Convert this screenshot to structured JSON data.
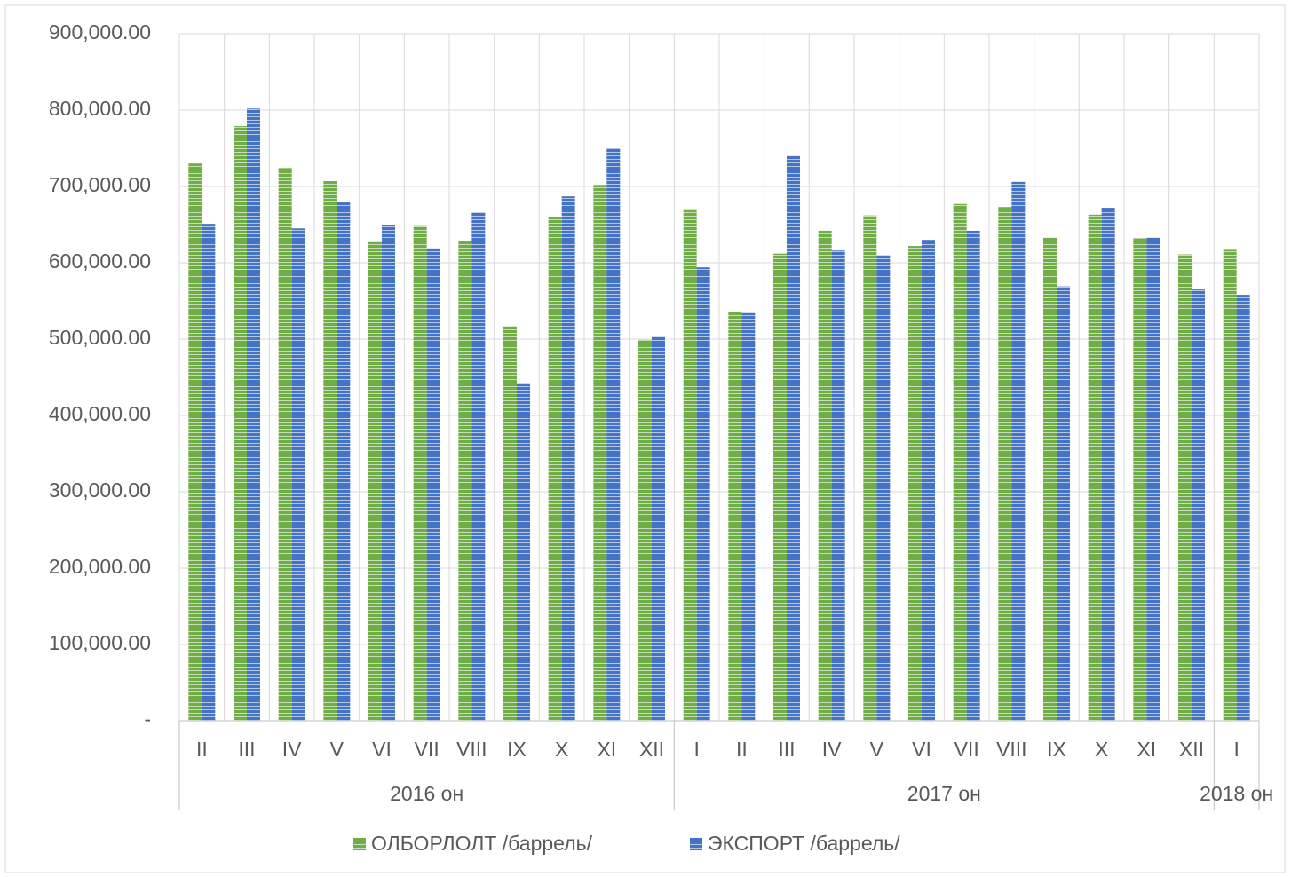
{
  "chart_data": {
    "type": "bar",
    "groups": [
      {
        "label": "2016 он",
        "categories": [
          "II",
          "III",
          "IV",
          "V",
          "VI",
          "VII",
          "VIII",
          "IX",
          "X",
          "XI",
          "XII"
        ]
      },
      {
        "label": "2017 он",
        "categories": [
          "I",
          "II",
          "III",
          "IV",
          "V",
          "VI",
          "VII",
          "VIII",
          "IX",
          "X",
          "XI",
          "XII"
        ]
      },
      {
        "label": "2018 он",
        "categories": [
          "I"
        ]
      }
    ],
    "series": [
      {
        "name": "ОЛБОРЛОЛТ /баррель/",
        "color": "#70ad47",
        "values": [
          730000,
          779000,
          724000,
          707000,
          627000,
          648000,
          629000,
          517000,
          660000,
          702000,
          499000,
          669000,
          536000,
          612000,
          642000,
          662000,
          622000,
          677000,
          673000,
          633000,
          663000,
          632000,
          611000,
          617000
        ]
      },
      {
        "name": "ЭКСПОРТ /баррель/",
        "color": "#4472c4",
        "values": [
          651000,
          802000,
          645000,
          679000,
          649000,
          619000,
          666000,
          441000,
          687000,
          750000,
          503000,
          594000,
          534000,
          740000,
          616000,
          610000,
          630000,
          642000,
          706000,
          569000,
          672000,
          633000,
          565000,
          558000
        ]
      }
    ],
    "ylim": [
      0,
      900000
    ],
    "yticks": [
      {
        "value": 0,
        "label": "-"
      },
      {
        "value": 100000,
        "label": "100,000.00"
      },
      {
        "value": 200000,
        "label": "200,000.00"
      },
      {
        "value": 300000,
        "label": "300,000.00"
      },
      {
        "value": 400000,
        "label": "400,000.00"
      },
      {
        "value": 500000,
        "label": "500,000.00"
      },
      {
        "value": 600000,
        "label": "600,000.00"
      },
      {
        "value": 700000,
        "label": "700,000.00"
      },
      {
        "value": 800000,
        "label": "800,000.00"
      },
      {
        "value": 900000,
        "label": "900,000.00"
      }
    ],
    "grid": true,
    "legend": "bottom"
  }
}
